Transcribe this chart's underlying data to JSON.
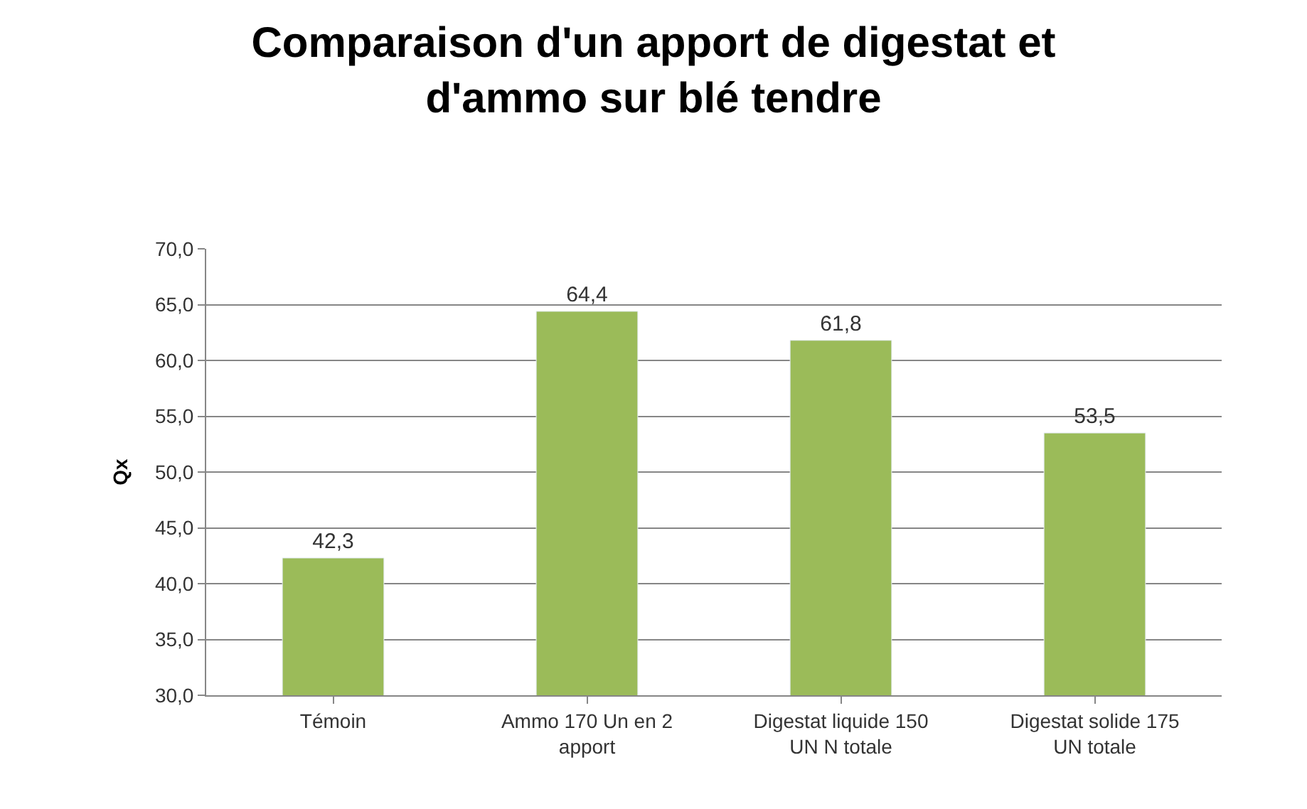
{
  "chart_data": {
    "type": "bar",
    "title": "Comparaison d'un apport de digestat et d'ammo sur blé tendre",
    "ylabel": "Qx",
    "categories": [
      "Témoin",
      "Ammo 170 Un en 2 apport",
      "Digestat liquide 150 UN N totale",
      "Digestat solide 175 UN totale"
    ],
    "values": [
      42.3,
      64.4,
      61.8,
      53.5
    ],
    "value_labels": [
      "42,3",
      "64,4",
      "61,8",
      "53,5"
    ],
    "color": "#9bbb59",
    "ylim": [
      30,
      70
    ],
    "yticks": [
      {
        "value": 30,
        "label": "30,0"
      },
      {
        "value": 35,
        "label": "35,0"
      },
      {
        "value": 40,
        "label": "40,0"
      },
      {
        "value": 45,
        "label": "45,0"
      },
      {
        "value": 50,
        "label": "50,0"
      },
      {
        "value": 55,
        "label": "55,0"
      },
      {
        "value": 60,
        "label": "60,0"
      },
      {
        "value": 65,
        "label": "65,0"
      },
      {
        "value": 70,
        "label": "70,0"
      }
    ],
    "grid": "y",
    "legend": false
  }
}
